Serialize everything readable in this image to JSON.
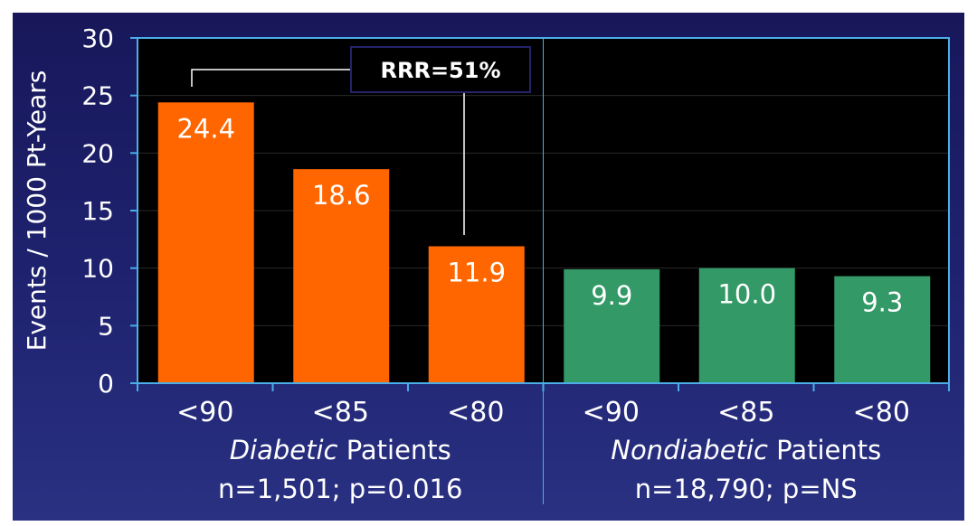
{
  "chart_data": {
    "type": "bar",
    "ylabel": "Events / 1000 Pt-Years",
    "ylim": [
      0,
      30
    ],
    "yticks": [
      "0",
      "5",
      "10",
      "15",
      "20",
      "25",
      "30"
    ],
    "categories": [
      "<90",
      "<85",
      "<80",
      "<90",
      "<85",
      "<80"
    ],
    "values": [
      24.4,
      18.6,
      11.9,
      9.9,
      10.0,
      9.3
    ],
    "value_labels": [
      "24.4",
      "18.6",
      "11.9",
      "9.9",
      "10.0",
      "9.3"
    ],
    "grid": true,
    "groups": [
      {
        "label_italic": "Diabetic",
        "label_rest": " Patients",
        "stats": "n=1,501; p=0.016",
        "color": "#ff6600"
      },
      {
        "label_italic": "Nondiabetic",
        "label_rest": " Patients",
        "stats": "n=18,790; p=NS",
        "color": "#339966"
      }
    ],
    "annotation": "RRR=51%"
  },
  "colors": {
    "plot_background": "#000000",
    "axis": "#4aaee8",
    "text": "#ffffff",
    "grid": "#2a2a2a"
  }
}
